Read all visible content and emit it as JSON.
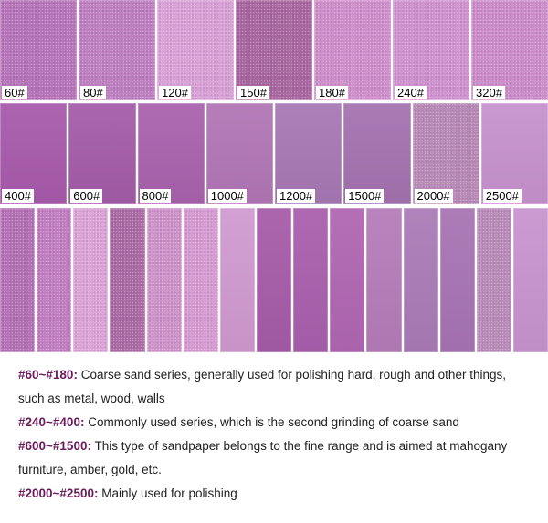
{
  "colors": {
    "accent_text": "#6a1b5a"
  },
  "row1": [
    {
      "label": "60#",
      "color": "#b574b8",
      "texture": "grain"
    },
    {
      "label": "80#",
      "color": "#bd7fc0",
      "texture": "grain"
    },
    {
      "label": "120#",
      "color": "#d9a2d7",
      "texture": "grain"
    },
    {
      "label": "150#",
      "color": "#a8669f",
      "texture": "grain"
    },
    {
      "label": "180#",
      "color": "#cf8fcb",
      "texture": "grain"
    },
    {
      "label": "240#",
      "color": "#d092cf",
      "texture": "grain"
    },
    {
      "label": "320#",
      "color": "#cc8cca",
      "texture": "grain"
    }
  ],
  "row2": [
    {
      "label": "400#",
      "color": "#a75aab",
      "texture": "fine"
    },
    {
      "label": "600#",
      "color": "#a45ca9",
      "texture": "fine"
    },
    {
      "label": "800#",
      "color": "#a962ad",
      "texture": "fine"
    },
    {
      "label": "1000#",
      "color": "#b176b5",
      "texture": "fine"
    },
    {
      "label": "1200#",
      "color": "#a878b5",
      "texture": "fine"
    },
    {
      "label": "1500#",
      "color": "#a472b0",
      "texture": "fine"
    },
    {
      "label": "2000#",
      "color": "#b789b6",
      "texture": "grain"
    },
    {
      "label": "2500#",
      "color": "#c792ce",
      "texture": "fine"
    }
  ],
  "row3": [
    {
      "color": "#b371b3",
      "texture": "grain"
    },
    {
      "color": "#c07dc0",
      "texture": "grain"
    },
    {
      "color": "#d9a3d6",
      "texture": "grain"
    },
    {
      "color": "#a96aa3",
      "texture": "grain"
    },
    {
      "color": "#cd93c9",
      "texture": "grain"
    },
    {
      "color": "#d49bd1",
      "texture": "grain"
    },
    {
      "color": "#d09ad0",
      "texture": "fine"
    },
    {
      "color": "#a55ca8",
      "texture": "fine"
    },
    {
      "color": "#a95fad",
      "texture": "fine"
    },
    {
      "color": "#b066b2",
      "texture": "fine"
    },
    {
      "color": "#b57cb9",
      "texture": "fine"
    },
    {
      "color": "#ab7bb7",
      "texture": "fine"
    },
    {
      "color": "#a774b3",
      "texture": "fine"
    },
    {
      "color": "#b98bb9",
      "texture": "grain"
    },
    {
      "color": "#c894cf",
      "texture": "fine"
    }
  ],
  "descriptions": [
    {
      "range": "#60~#180:",
      "text": " Coarse sand series, generally used for polishing hard, rough and other things,",
      "continuation": "such as metal, wood, walls"
    },
    {
      "range": "#240~#400:",
      "text": " Commonly used series, which is the second grinding of coarse sand",
      "continuation": ""
    },
    {
      "range": "#600~#1500:",
      "text": " This type of sandpaper belongs to the fine range and is aimed at mahogany",
      "continuation": "furniture, amber, gold, etc."
    },
    {
      "range": "#2000~#2500:",
      "text": " Mainly used for polishing",
      "continuation": ""
    }
  ]
}
